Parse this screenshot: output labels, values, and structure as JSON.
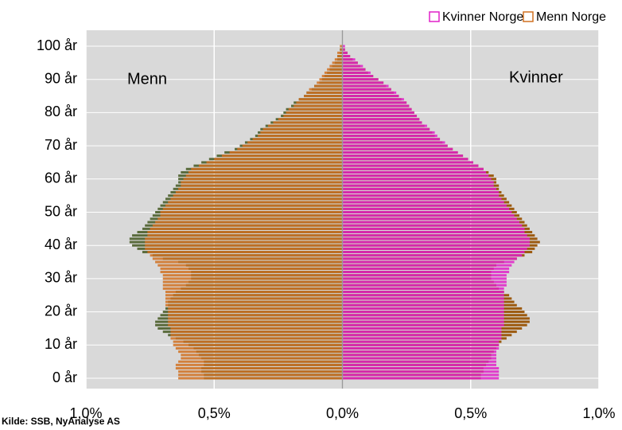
{
  "chart_data": {
    "type": "pyramid",
    "source": "Kilde: SSB, NyAnalyse AS",
    "annotations": [
      "Menn",
      "Kvinner"
    ],
    "categories": [
      "0 år",
      null,
      null,
      null,
      null,
      null,
      null,
      null,
      null,
      null,
      "10 år",
      null,
      null,
      null,
      null,
      null,
      null,
      null,
      null,
      null,
      "20 år",
      null,
      null,
      null,
      null,
      null,
      null,
      null,
      null,
      null,
      "30 år",
      null,
      null,
      null,
      null,
      null,
      null,
      null,
      null,
      null,
      "40 år",
      null,
      null,
      null,
      null,
      null,
      null,
      null,
      null,
      null,
      "50 år",
      null,
      null,
      null,
      null,
      null,
      null,
      null,
      null,
      null,
      "60 år",
      null,
      null,
      null,
      null,
      null,
      null,
      null,
      null,
      null,
      "70 år",
      null,
      null,
      null,
      null,
      null,
      null,
      null,
      null,
      null,
      "80 år",
      null,
      null,
      null,
      null,
      null,
      null,
      null,
      null,
      null,
      "90 år",
      null,
      null,
      null,
      null,
      null,
      null,
      null,
      null,
      null,
      "100 år"
    ],
    "xlim": [
      -1.0,
      1.0
    ],
    "xticks": [
      {
        "value": -1.0,
        "label": "1,0%"
      },
      {
        "value": -0.5,
        "label": "0,5%"
      },
      {
        "value": 0.0,
        "label": "0,0%"
      },
      {
        "value": 0.5,
        "label": "0,5%"
      },
      {
        "value": 1.0,
        "label": "1,0%"
      }
    ],
    "grid": true,
    "legend": "top-right",
    "series": [
      {
        "color": "#5a6b3c",
        "values": [
          -0.54,
          -0.54,
          -0.55,
          -0.55,
          -0.54,
          -0.54,
          -0.55,
          -0.56,
          -0.57,
          -0.58,
          -0.6,
          -0.62,
          -0.65,
          -0.68,
          -0.7,
          -0.72,
          -0.73,
          -0.73,
          -0.72,
          -0.71,
          -0.7,
          -0.69,
          -0.68,
          -0.68,
          -0.67,
          -0.66,
          -0.65,
          -0.63,
          -0.61,
          -0.6,
          -0.59,
          -0.59,
          -0.59,
          -0.6,
          -0.61,
          -0.64,
          -0.7,
          -0.74,
          -0.78,
          -0.8,
          -0.82,
          -0.83,
          -0.83,
          -0.82,
          -0.8,
          -0.78,
          -0.77,
          -0.76,
          -0.75,
          -0.74,
          -0.73,
          -0.72,
          -0.71,
          -0.7,
          -0.69,
          -0.68,
          -0.67,
          -0.66,
          -0.65,
          -0.64,
          -0.64,
          -0.64,
          -0.63,
          -0.61,
          -0.58,
          -0.55,
          -0.52,
          -0.49,
          -0.46,
          -0.42,
          -0.4,
          -0.38,
          -0.36,
          -0.34,
          -0.33,
          -0.32,
          -0.3,
          -0.28,
          -0.26,
          -0.24,
          -0.23,
          -0.22,
          -0.2,
          -0.19,
          -0.17,
          -0.15,
          -0.14,
          -0.12,
          -0.11,
          -0.09,
          -0.08,
          -0.07,
          -0.06,
          -0.05,
          -0.04,
          -0.03,
          -0.02,
          -0.02,
          -0.01,
          -0.01,
          0.0
        ]
      },
      {
        "color": "#9c5a0f",
        "values": [
          0.54,
          0.54,
          0.55,
          0.55,
          0.56,
          0.57,
          0.58,
          0.58,
          0.59,
          0.6,
          0.61,
          0.62,
          0.64,
          0.66,
          0.68,
          0.7,
          0.72,
          0.73,
          0.73,
          0.72,
          0.71,
          0.7,
          0.68,
          0.67,
          0.66,
          0.65,
          0.63,
          0.61,
          0.6,
          0.59,
          0.58,
          0.58,
          0.58,
          0.59,
          0.6,
          0.63,
          0.68,
          0.71,
          0.74,
          0.75,
          0.76,
          0.77,
          0.76,
          0.75,
          0.74,
          0.73,
          0.72,
          0.71,
          0.7,
          0.69,
          0.68,
          0.67,
          0.66,
          0.65,
          0.64,
          0.63,
          0.62,
          0.61,
          0.61,
          0.6,
          0.6,
          0.59,
          0.57,
          0.55,
          0.53,
          0.51,
          0.49,
          0.47,
          0.45,
          0.43,
          0.41,
          0.39,
          0.38,
          0.36,
          0.35,
          0.34,
          0.32,
          0.31,
          0.3,
          0.29,
          0.28,
          0.27,
          0.26,
          0.25,
          0.23,
          0.22,
          0.2,
          0.19,
          0.17,
          0.16,
          0.14,
          0.12,
          0.1,
          0.09,
          0.07,
          0.06,
          0.04,
          0.03,
          0.02,
          0.01,
          0.0
        ]
      },
      {
        "name": "Kvinner Norge",
        "color": "#e020c8",
        "values": [
          0.61,
          0.61,
          0.61,
          0.61,
          0.6,
          0.6,
          0.6,
          0.6,
          0.6,
          0.61,
          0.61,
          0.61,
          0.62,
          0.62,
          0.62,
          0.62,
          0.63,
          0.63,
          0.63,
          0.63,
          0.63,
          0.63,
          0.63,
          0.63,
          0.63,
          0.63,
          0.63,
          0.63,
          0.64,
          0.64,
          0.64,
          0.64,
          0.65,
          0.65,
          0.66,
          0.67,
          0.68,
          0.7,
          0.71,
          0.72,
          0.73,
          0.73,
          0.73,
          0.72,
          0.71,
          0.71,
          0.7,
          0.69,
          0.68,
          0.67,
          0.66,
          0.65,
          0.64,
          0.63,
          0.62,
          0.61,
          0.61,
          0.6,
          0.59,
          0.59,
          0.58,
          0.57,
          0.56,
          0.55,
          0.53,
          0.51,
          0.49,
          0.47,
          0.45,
          0.43,
          0.41,
          0.4,
          0.38,
          0.37,
          0.36,
          0.34,
          0.33,
          0.31,
          0.3,
          0.29,
          0.28,
          0.27,
          0.26,
          0.25,
          0.24,
          0.22,
          0.21,
          0.19,
          0.18,
          0.16,
          0.14,
          0.12,
          0.11,
          0.09,
          0.08,
          0.06,
          0.05,
          0.03,
          0.02,
          0.01,
          0.01
        ]
      },
      {
        "name": "Menn Norge",
        "color": "#d07020",
        "values": [
          -0.64,
          -0.64,
          -0.64,
          -0.65,
          -0.65,
          -0.64,
          -0.63,
          -0.63,
          -0.64,
          -0.65,
          -0.66,
          -0.66,
          -0.67,
          -0.67,
          -0.67,
          -0.67,
          -0.68,
          -0.68,
          -0.68,
          -0.68,
          -0.68,
          -0.68,
          -0.69,
          -0.69,
          -0.69,
          -0.69,
          -0.69,
          -0.7,
          -0.7,
          -0.7,
          -0.7,
          -0.7,
          -0.71,
          -0.71,
          -0.72,
          -0.73,
          -0.74,
          -0.75,
          -0.76,
          -0.77,
          -0.77,
          -0.77,
          -0.77,
          -0.76,
          -0.76,
          -0.75,
          -0.74,
          -0.73,
          -0.72,
          -0.71,
          -0.71,
          -0.7,
          -0.69,
          -0.68,
          -0.67,
          -0.66,
          -0.65,
          -0.64,
          -0.63,
          -0.63,
          -0.62,
          -0.61,
          -0.6,
          -0.59,
          -0.56,
          -0.53,
          -0.5,
          -0.47,
          -0.44,
          -0.41,
          -0.39,
          -0.37,
          -0.35,
          -0.33,
          -0.32,
          -0.31,
          -0.29,
          -0.27,
          -0.25,
          -0.23,
          -0.22,
          -0.21,
          -0.19,
          -0.18,
          -0.17,
          -0.15,
          -0.14,
          -0.13,
          -0.11,
          -0.1,
          -0.09,
          -0.08,
          -0.07,
          -0.06,
          -0.05,
          -0.04,
          -0.03,
          -0.02,
          -0.02,
          -0.01,
          -0.01
        ]
      }
    ]
  }
}
